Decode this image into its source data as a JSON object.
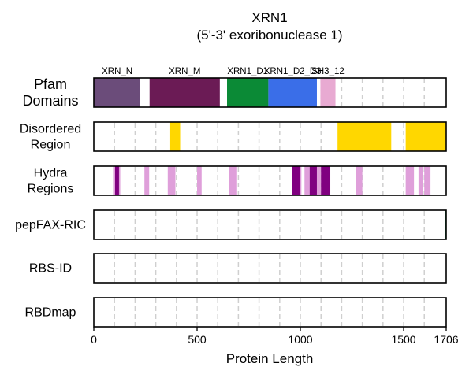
{
  "chart_data": {
    "type": "protein-domain-tracks",
    "title": "XRN1",
    "subtitle": "(5'-3' exoribonuclease 1)",
    "xlabel": "Protein Length",
    "xlim": [
      0,
      1706
    ],
    "xticks": [
      0,
      500,
      1000,
      1500,
      1706
    ],
    "gridlines": [
      100,
      200,
      300,
      400,
      500,
      600,
      700,
      800,
      900,
      1000,
      1100,
      1200,
      1300,
      1400,
      1500,
      1600
    ],
    "grid": true,
    "tracks": [
      {
        "label": [
          "Pfam",
          "Domains"
        ],
        "segments": [
          {
            "start": 1,
            "end": 225,
            "name": "XRN_N",
            "color": "#6b4c7a"
          },
          {
            "start": 270,
            "end": 610,
            "name": "XRN_M",
            "color": "#6b1b55"
          },
          {
            "start": 645,
            "end": 845,
            "name": "XRN1_D1",
            "color": "#0b8a36"
          },
          {
            "start": 845,
            "end": 1080,
            "name": "XRN1_D2_D3",
            "color": "#3a6ee8"
          },
          {
            "start": 1097,
            "end": 1170,
            "name": "SH3_12",
            "color": "#e8aad2"
          }
        ]
      },
      {
        "label": [
          "Disordered",
          "Region"
        ],
        "segments": [
          {
            "start": 370,
            "end": 418,
            "color": "#ffd700"
          },
          {
            "start": 1180,
            "end": 1440,
            "color": "#ffd700"
          },
          {
            "start": 1510,
            "end": 1706,
            "color": "#ffd700"
          }
        ]
      },
      {
        "label": [
          "Hydra",
          "Regions"
        ],
        "segments": [
          {
            "start": 93,
            "end": 103,
            "color": "#df9fda"
          },
          {
            "start": 103,
            "end": 122,
            "color": "#800080"
          },
          {
            "start": 122,
            "end": 128,
            "color": "#df9fda"
          },
          {
            "start": 245,
            "end": 268,
            "color": "#df9fda"
          },
          {
            "start": 358,
            "end": 395,
            "color": "#df9fda"
          },
          {
            "start": 500,
            "end": 522,
            "color": "#df9fda"
          },
          {
            "start": 655,
            "end": 690,
            "color": "#df9fda"
          },
          {
            "start": 960,
            "end": 998,
            "color": "#800080"
          },
          {
            "start": 998,
            "end": 1005,
            "color": "#df9fda"
          },
          {
            "start": 1020,
            "end": 1045,
            "color": "#df9fda"
          },
          {
            "start": 1045,
            "end": 1080,
            "color": "#800080"
          },
          {
            "start": 1080,
            "end": 1100,
            "color": "#df9fda"
          },
          {
            "start": 1100,
            "end": 1145,
            "color": "#800080"
          },
          {
            "start": 1270,
            "end": 1300,
            "color": "#df9fda"
          },
          {
            "start": 1510,
            "end": 1550,
            "color": "#df9fda"
          },
          {
            "start": 1572,
            "end": 1592,
            "color": "#df9fda"
          },
          {
            "start": 1600,
            "end": 1630,
            "color": "#df9fda"
          }
        ]
      },
      {
        "label": [
          "pepFAX-RIC"
        ],
        "segments": [
          {
            "start": 1702,
            "end": 1706,
            "color": "#2e8b57"
          }
        ]
      },
      {
        "label": [
          "RBS-ID"
        ],
        "segments": []
      },
      {
        "label": [
          "RBDmap"
        ],
        "segments": []
      }
    ]
  }
}
